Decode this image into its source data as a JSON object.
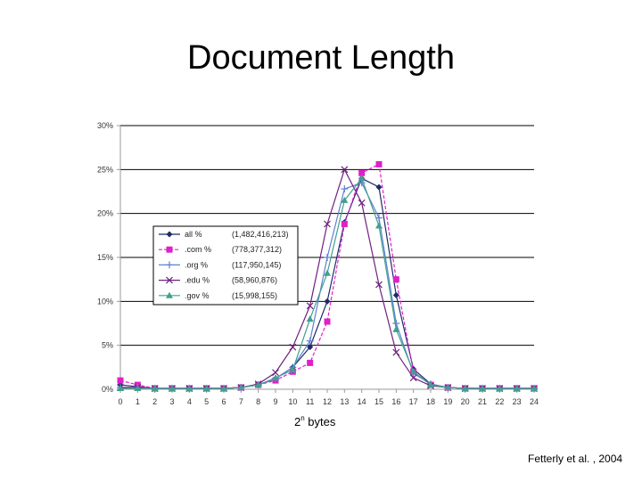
{
  "slide": {
    "title": "Document Length",
    "xlabel_base": "2",
    "xlabel_sup": "n",
    "xlabel_rest": " bytes",
    "citation": "Fetterly et al. , 2004"
  },
  "chart_data": {
    "type": "line",
    "title": "",
    "xlabel": "2n bytes",
    "ylabel": "",
    "x": [
      0,
      1,
      2,
      3,
      4,
      5,
      6,
      7,
      8,
      9,
      10,
      11,
      12,
      13,
      14,
      15,
      16,
      17,
      18,
      19,
      20,
      21,
      22,
      23,
      24
    ],
    "ylim": [
      0,
      30
    ],
    "yticks": [
      0,
      5,
      10,
      15,
      20,
      25,
      30
    ],
    "ytick_labels": [
      "0%",
      "5%",
      "10%",
      "15%",
      "20%",
      "25%",
      "30%"
    ],
    "grid": "horizontal",
    "legend_position": "left",
    "series": [
      {
        "name": "all %",
        "count": "(1,482,416,213)",
        "color": "#1f2a6b",
        "marker": "diamond",
        "dashed": false,
        "values": [
          0.5,
          0.3,
          0.1,
          0.1,
          0.1,
          0.1,
          0.1,
          0.2,
          0.5,
          1.2,
          2.5,
          4.8,
          10,
          19,
          24,
          23,
          10.7,
          2.3,
          0.6,
          0.2,
          0.1,
          0.1,
          0.1,
          0.1,
          0.1
        ]
      },
      {
        "name": ".com %",
        "count": "(778,377,312)",
        "color": "#e020c8",
        "marker": "square",
        "dashed": true,
        "values": [
          1,
          0.5,
          0.1,
          0.1,
          0.1,
          0.1,
          0.1,
          0.2,
          0.5,
          1,
          2,
          3,
          7.7,
          18.8,
          24.6,
          25.6,
          12.5,
          2,
          0.5,
          0.2,
          0.1,
          0.1,
          0.1,
          0.1,
          0.1
        ]
      },
      {
        "name": ".org %",
        "count": "(117,950,145)",
        "color": "#6080d0",
        "marker": "plus",
        "dashed": false,
        "values": [
          0.2,
          0.2,
          0.1,
          0.1,
          0.1,
          0.1,
          0.1,
          0.2,
          0.5,
          1.2,
          2.5,
          5.5,
          15,
          22.8,
          23.5,
          19.5,
          7.5,
          1.8,
          0.6,
          0.2,
          0.1,
          0.1,
          0.1,
          0.1,
          0.1
        ]
      },
      {
        "name": ".edu %",
        "count": "(58,960,876)",
        "color": "#702080",
        "marker": "x",
        "dashed": false,
        "values": [
          0.2,
          0.2,
          0.1,
          0.1,
          0.1,
          0.1,
          0.1,
          0.2,
          0.6,
          1.9,
          4.8,
          9.5,
          18.8,
          25,
          21.2,
          11.9,
          4.2,
          1.3,
          0.4,
          0.2,
          0.1,
          0.1,
          0.1,
          0.1,
          0.1
        ]
      },
      {
        "name": ".gov %",
        "count": "(15,998,155)",
        "color": "#40a090",
        "marker": "triangle",
        "dashed": false,
        "values": [
          0.1,
          0.1,
          0.1,
          0.1,
          0.1,
          0.1,
          0.1,
          0.2,
          0.5,
          1.3,
          2.2,
          8,
          13.2,
          21.5,
          24,
          18.6,
          6.8,
          2,
          0.5,
          0.2,
          0.1,
          0.1,
          0.1,
          0.1,
          0.1
        ]
      }
    ]
  }
}
